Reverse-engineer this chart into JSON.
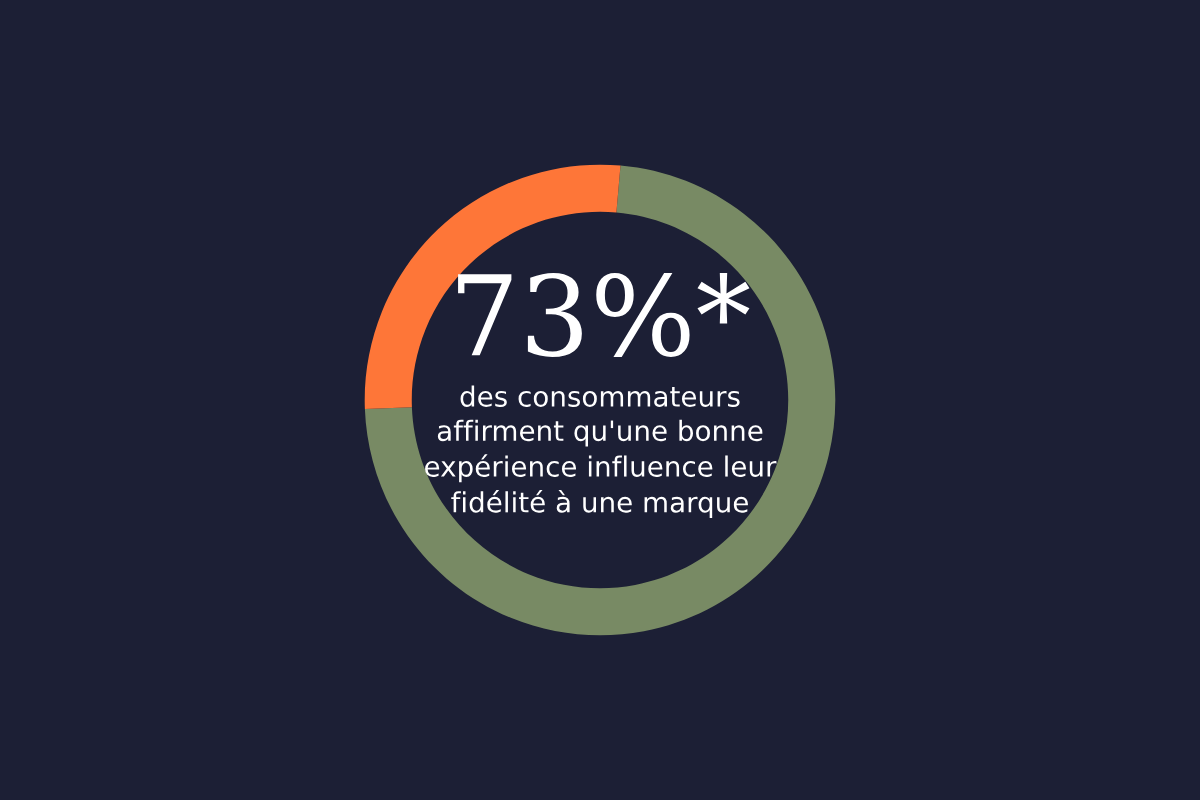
{
  "chart_data": {
    "type": "donut",
    "title": "73%*",
    "subtitle": "des consommateurs\naffirment qu'une bonne\nexpérience influence leur\nfidélité à une marque",
    "categories": [
      null,
      null
    ],
    "values": [
      73,
      27
    ],
    "colors": [
      "#788a64",
      "#fe7638"
    ]
  }
}
